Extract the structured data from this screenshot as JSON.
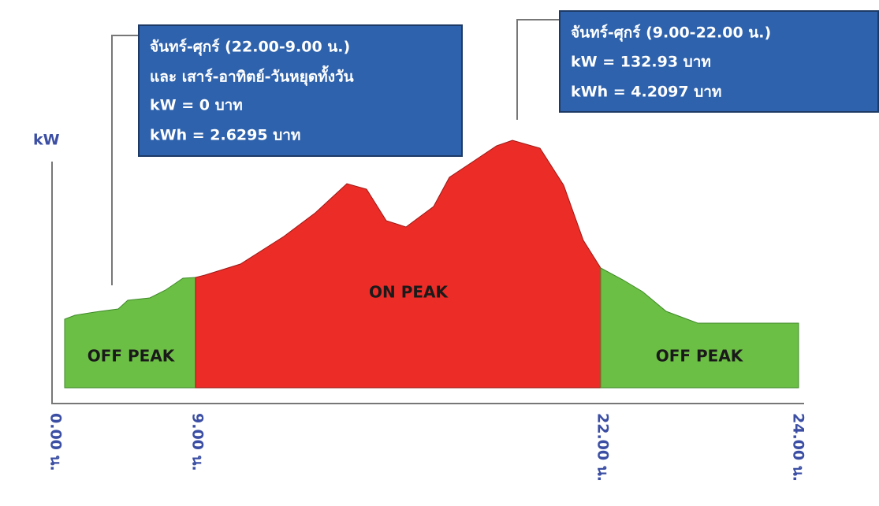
{
  "axis": {
    "y_label": "kW",
    "x_labels": [
      "0.00 น.",
      "9.00 น.",
      "22.00 น.",
      "24.00 น."
    ]
  },
  "regions": [
    "OFF PEAK",
    "ON PEAK",
    "OFF PEAK"
  ],
  "callouts": [
    {
      "lines": [
        "จันทร์-ศุกร์ (22.00-9.00 น.)",
        "และ เสาร์-อาทิตย์-วันหยุดทั้งวัน",
        "kW = 0 บาท",
        "kWh = 2.6295 บาท"
      ]
    },
    {
      "lines": [
        "จันทร์-ศุกร์ (9.00-22.00 น.)",
        "kW = 132.93 บาท",
        "kWh = 4.2097 บาท"
      ]
    }
  ]
}
